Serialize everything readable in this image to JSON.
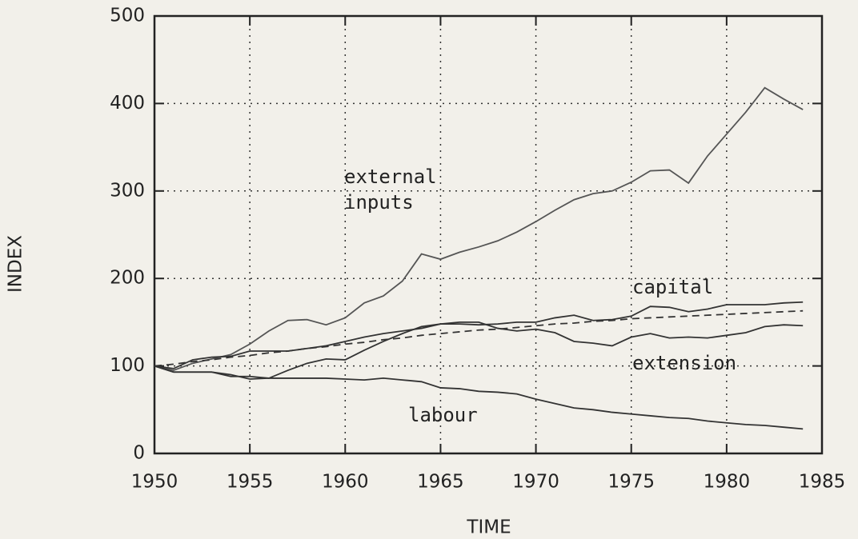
{
  "chart_data": {
    "type": "line",
    "xlabel": "TIME",
    "ylabel": "INDEX",
    "x": [
      1950,
      1951,
      1952,
      1953,
      1954,
      1955,
      1956,
      1957,
      1958,
      1959,
      1960,
      1961,
      1962,
      1963,
      1964,
      1965,
      1966,
      1967,
      1968,
      1969,
      1970,
      1971,
      1972,
      1973,
      1974,
      1975,
      1976,
      1977,
      1978,
      1979,
      1980,
      1981,
      1982,
      1983,
      1984
    ],
    "series": [
      {
        "name": "external inputs",
        "color": "#555555",
        "values": [
          100,
          95,
          103,
          108,
          113,
          125,
          140,
          152,
          153,
          147,
          155,
          172,
          180,
          197,
          228,
          222,
          230,
          236,
          243,
          253,
          265,
          278,
          290,
          297,
          300,
          310,
          323,
          324,
          309,
          340,
          365,
          390,
          418,
          405,
          393
        ]
      },
      {
        "name": "capital",
        "color": "#333333",
        "values": [
          100,
          97,
          107,
          110,
          111,
          117,
          117,
          117,
          120,
          123,
          128,
          133,
          137,
          140,
          143,
          148,
          148,
          147,
          148,
          150,
          150,
          155,
          158,
          152,
          153,
          157,
          168,
          167,
          162,
          165,
          170,
          170,
          170,
          172,
          173
        ]
      },
      {
        "name": "extension",
        "color": "#333333",
        "values": [
          100,
          93,
          93,
          93,
          90,
          85,
          86,
          95,
          103,
          108,
          107,
          118,
          128,
          137,
          145,
          148,
          150,
          150,
          143,
          140,
          142,
          138,
          128,
          126,
          123,
          133,
          137,
          132,
          133,
          132,
          135,
          138,
          145,
          147,
          146
        ]
      },
      {
        "name": "labour",
        "color": "#333333",
        "values": [
          100,
          93,
          93,
          93,
          88,
          88,
          86,
          86,
          86,
          86,
          85,
          84,
          86,
          84,
          82,
          75,
          74,
          71,
          70,
          68,
          62,
          57,
          52,
          50,
          47,
          45,
          43,
          41,
          40,
          37,
          35,
          33,
          32,
          30,
          28
        ]
      },
      {
        "color": "#333333",
        "dashed": true,
        "values": [
          100,
          102,
          105,
          107,
          110,
          112,
          115,
          117,
          120,
          122,
          125,
          127,
          130,
          132,
          135,
          137,
          139,
          141,
          142,
          144,
          146,
          148,
          149,
          151,
          152,
          154,
          155,
          156,
          157,
          158,
          159,
          160,
          161,
          162,
          163
        ]
      }
    ],
    "xlim": [
      1950,
      1985
    ],
    "xticks": [
      1950,
      1955,
      1960,
      1965,
      1970,
      1975,
      1980,
      1985
    ],
    "ylim": [
      0,
      500
    ],
    "yticks": [
      0,
      100,
      200,
      300,
      400,
      500
    ],
    "grid": true
  }
}
